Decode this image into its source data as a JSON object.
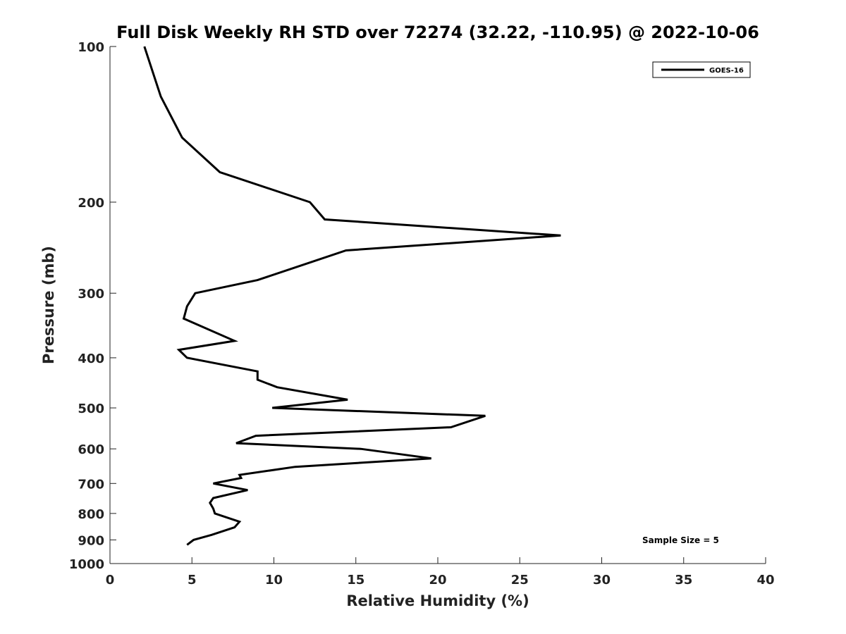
{
  "chart_data": {
    "type": "line",
    "title": "Full Disk Weekly RH STD over 72274 (32.22, -110.95) @ 2022-10-06",
    "xlabel": "Relative Humidity (%)",
    "ylabel": "Pressure (mb)",
    "xlim": [
      0,
      40
    ],
    "ylim": [
      100,
      1000
    ],
    "y_scale": "log",
    "y_inverted": true,
    "x_ticks": [
      "0",
      "5",
      "10",
      "15",
      "20",
      "25",
      "30",
      "35",
      "40"
    ],
    "y_ticks": [
      "100",
      "200",
      "300",
      "400",
      "500",
      "600",
      "700",
      "800",
      "900",
      "1000"
    ],
    "grid": false,
    "legend_position": "top-right",
    "annotation": "Sample Size = 5",
    "series": [
      {
        "name": "GOES-16",
        "color": "#000000",
        "points": [
          [
            2.1,
            100
          ],
          [
            3.1,
            125
          ],
          [
            4.4,
            150
          ],
          [
            6.7,
            175
          ],
          [
            12.2,
            200
          ],
          [
            13.1,
            216
          ],
          [
            27.5,
            232
          ],
          [
            14.4,
            248
          ],
          [
            9.0,
            283
          ],
          [
            5.2,
            300
          ],
          [
            4.7,
            318
          ],
          [
            4.5,
            336
          ],
          [
            7.6,
            371
          ],
          [
            4.2,
            386
          ],
          [
            4.7,
            400
          ],
          [
            9.0,
            425
          ],
          [
            9.0,
            441
          ],
          [
            10.2,
            456
          ],
          [
            14.5,
            482
          ],
          [
            9.9,
            500
          ],
          [
            22.9,
            518
          ],
          [
            20.8,
            545
          ],
          [
            8.9,
            566
          ],
          [
            7.7,
            585
          ],
          [
            15.3,
            600
          ],
          [
            19.6,
            626
          ],
          [
            11.3,
            650
          ],
          [
            7.9,
            674
          ],
          [
            8.0,
            683
          ],
          [
            6.3,
            700
          ],
          [
            8.4,
            721
          ],
          [
            6.3,
            747
          ],
          [
            6.1,
            763
          ],
          [
            6.3,
            783
          ],
          [
            6.4,
            800
          ],
          [
            7.9,
            830
          ],
          [
            7.6,
            851
          ],
          [
            6.2,
            880
          ],
          [
            5.1,
            900
          ],
          [
            4.7,
            920
          ]
        ]
      }
    ]
  }
}
